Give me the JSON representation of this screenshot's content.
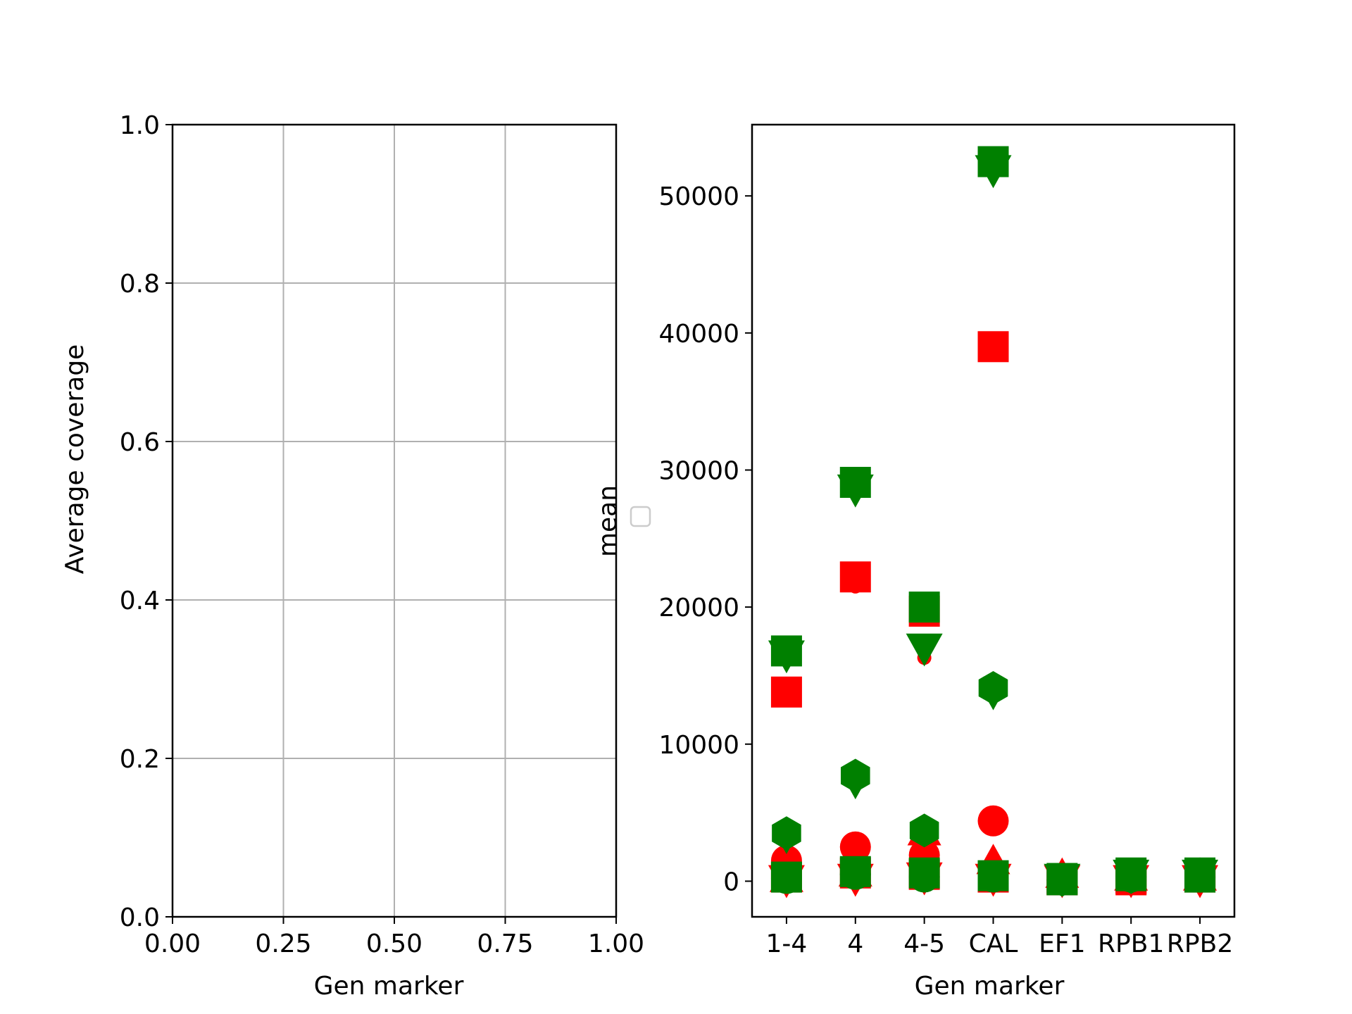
{
  "chart_data": [
    {
      "type": "line",
      "xlabel": "Gen marker",
      "ylabel": "Average coverage",
      "xlim": [
        0,
        1
      ],
      "ylim": [
        0,
        1
      ],
      "xticks": [
        "0.00",
        "0.25",
        "0.50",
        "0.75",
        "1.00"
      ],
      "yticks": [
        "0.0",
        "0.2",
        "0.4",
        "0.6",
        "0.8",
        "1.0"
      ],
      "grid": true,
      "series": []
    },
    {
      "type": "scatter",
      "xlabel": "Gen marker",
      "ylabel": "mean",
      "categories": [
        "1-4",
        "4",
        "4-5",
        "CAL",
        "EF1",
        "RPB1",
        "RPB2"
      ],
      "yticks": [
        "0",
        "10000",
        "20000",
        "30000",
        "40000",
        "50000"
      ],
      "ylim": [
        -2600,
        55200
      ],
      "grid": false,
      "legend": "empty legend box at left-center",
      "colors": {
        "red": "#ff0000",
        "green": "#008000"
      },
      "series": [
        {
          "color": "red",
          "marker": "circle",
          "values": [
            1500,
            2500,
            1900,
            4400,
            100,
            100,
            300
          ]
        },
        {
          "color": "red",
          "marker": "small-circle",
          "values": [
            800,
            21500,
            16300,
            39200,
            100,
            150,
            300
          ]
        },
        {
          "color": "red",
          "marker": "triangle-up",
          "values": [
            200,
            600,
            3600,
            1500,
            500,
            300,
            300
          ]
        },
        {
          "color": "red",
          "marker": "triangle-down",
          "values": [
            100,
            200,
            300,
            200,
            100,
            100,
            100
          ]
        },
        {
          "color": "red",
          "marker": "square",
          "values": [
            13800,
            22200,
            19700,
            39000,
            100,
            200,
            400
          ]
        },
        {
          "color": "red",
          "marker": "square",
          "values": [
            300,
            600,
            500,
            300,
            100,
            100,
            300
          ]
        },
        {
          "color": "green",
          "marker": "hexagon",
          "values": [
            3500,
            7700,
            3700,
            14100,
            100,
            300,
            500
          ]
        },
        {
          "color": "green",
          "marker": "triangle-down",
          "values": [
            16500,
            28600,
            17000,
            51900,
            200,
            500,
            500
          ]
        },
        {
          "color": "green",
          "marker": "triangle-down-2",
          "values": [
            3000,
            7000,
            400,
            13500,
            100,
            300,
            400
          ]
        },
        {
          "color": "green",
          "marker": "square",
          "values": [
            16800,
            29100,
            20000,
            52500,
            200,
            600,
            600
          ]
        },
        {
          "color": "green",
          "marker": "square",
          "values": [
            300,
            700,
            600,
            400,
            100,
            400,
            300
          ]
        },
        {
          "color": "green",
          "marker": "circle",
          "values": [
            200,
            500,
            300,
            300,
            100,
            300,
            300
          ]
        }
      ]
    }
  ]
}
